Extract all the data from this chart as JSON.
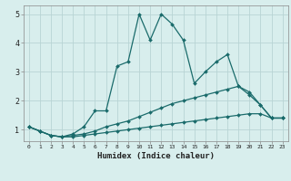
{
  "xlabel": "Humidex (Indice chaleur)",
  "bg_color": "#d8eeed",
  "grid_color": "#b8d4d4",
  "line_color": "#1a6b6b",
  "xlim": [
    -0.5,
    23.5
  ],
  "ylim": [
    0.6,
    5.3
  ],
  "yticks": [
    1,
    2,
    3,
    4,
    5
  ],
  "xticks": [
    0,
    1,
    2,
    3,
    4,
    5,
    6,
    7,
    8,
    9,
    10,
    11,
    12,
    13,
    14,
    15,
    16,
    17,
    18,
    19,
    20,
    21,
    22,
    23
  ],
  "series": [
    {
      "x": [
        0,
        1,
        2,
        3,
        4,
        5,
        6,
        7,
        8,
        9,
        10,
        11,
        12,
        13,
        14,
        15,
        16,
        17,
        18,
        19,
        20,
        21,
        22,
        23
      ],
      "y": [
        1.1,
        0.95,
        0.8,
        0.75,
        0.75,
        0.8,
        0.85,
        0.9,
        0.95,
        1.0,
        1.05,
        1.1,
        1.15,
        1.2,
        1.25,
        1.3,
        1.35,
        1.4,
        1.45,
        1.5,
        1.55,
        1.55,
        1.4,
        1.4
      ]
    },
    {
      "x": [
        0,
        1,
        2,
        3,
        4,
        5,
        6,
        7,
        8,
        9,
        10,
        11,
        12,
        13,
        14,
        15,
        16,
        17,
        18,
        19,
        20,
        21,
        22,
        23
      ],
      "y": [
        1.1,
        0.95,
        0.8,
        0.75,
        0.8,
        0.85,
        0.95,
        1.1,
        1.2,
        1.3,
        1.45,
        1.6,
        1.75,
        1.9,
        2.0,
        2.1,
        2.2,
        2.3,
        2.4,
        2.5,
        2.3,
        1.85,
        1.4,
        1.4
      ]
    },
    {
      "x": [
        0,
        1,
        2,
        3,
        4,
        5,
        6,
        7,
        8,
        9,
        10,
        11,
        12,
        13,
        14,
        15,
        16,
        17,
        18,
        19,
        20,
        21,
        22,
        23
      ],
      "y": [
        1.1,
        0.95,
        0.8,
        0.75,
        0.85,
        1.1,
        1.65,
        1.65,
        3.2,
        3.35,
        5.0,
        4.1,
        5.0,
        4.65,
        4.1,
        2.6,
        3.0,
        3.35,
        3.6,
        2.5,
        2.2,
        1.85,
        1.4,
        1.4
      ]
    }
  ]
}
